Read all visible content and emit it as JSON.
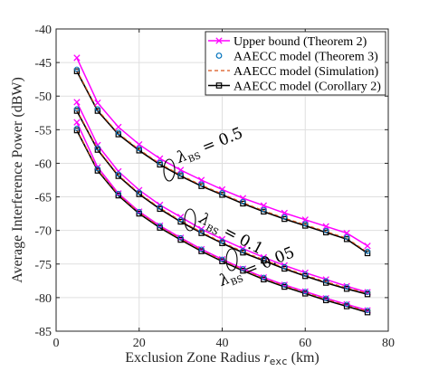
{
  "chart_data": {
    "type": "line",
    "xlabel": "Exclusion Zone Radius r_exc (km)",
    "xlabel_main": "Exclusion Zone Radius ",
    "xlabel_sym": "r",
    "xlabel_sub": "exc",
    "xlabel_unit": " (km)",
    "ylabel": "Average Interference Power (dBW)",
    "xlim": [
      0,
      80
    ],
    "ylim": [
      -85,
      -40
    ],
    "xticks": [
      0,
      20,
      40,
      60,
      80
    ],
    "yticks": [
      -85,
      -80,
      -75,
      -70,
      -65,
      -60,
      -55,
      -50,
      -45,
      -40
    ],
    "x": [
      5,
      10,
      15,
      20,
      25,
      30,
      35,
      40,
      45,
      50,
      55,
      60,
      65,
      70,
      75
    ],
    "legend_position": "top-right",
    "legend": [
      {
        "label": "Upper bound (Theorem 2)",
        "color": "#ff00ff",
        "marker": "x",
        "line": "solid"
      },
      {
        "label": "AAECC model (Theorem 3)",
        "color": "#0072bd",
        "marker": "o",
        "line": "none"
      },
      {
        "label": "AAECC model (Simulation)",
        "color": "#d95319",
        "marker": "none",
        "line": "dashed"
      },
      {
        "label": "AAECC model (Corollary 2)",
        "color": "#000000",
        "marker": "square",
        "line": "solid"
      }
    ],
    "annotations": [
      {
        "text": "λBS = 0.5",
        "sym": "λ",
        "sub": "BS",
        "rest": " = 0.5"
      },
      {
        "text": "λBS = 0.1",
        "sym": "λ",
        "sub": "BS",
        "rest": " = 0.1"
      },
      {
        "text": "λBS = 0.05",
        "sym": "λ",
        "sub": "BS",
        "rest": " = 0.05"
      }
    ],
    "groups": [
      {
        "lambda": 0.5,
        "upper": [
          -44.3,
          -51.0,
          -54.6,
          -57.2,
          -59.3,
          -61.0,
          -62.5,
          -63.9,
          -65.2,
          -66.3,
          -67.4,
          -68.4,
          -69.4,
          -70.4,
          -72.3
        ],
        "model": [
          -46.3,
          -52.2,
          -55.7,
          -58.1,
          -60.2,
          -61.9,
          -63.4,
          -64.7,
          -66.0,
          -67.2,
          -68.3,
          -69.3,
          -70.3,
          -71.3,
          -73.4
        ]
      },
      {
        "lambda": 0.1,
        "upper": [
          -50.9,
          -57.3,
          -61.2,
          -64.0,
          -66.2,
          -68.0,
          -69.8,
          -71.3,
          -72.7,
          -74.0,
          -75.2,
          -76.3,
          -77.3,
          -78.3,
          -79.2
        ],
        "model": [
          -52.2,
          -58.0,
          -61.9,
          -64.6,
          -66.8,
          -68.7,
          -70.4,
          -71.9,
          -73.3,
          -74.5,
          -75.7,
          -76.8,
          -77.8,
          -78.7,
          -79.5
        ]
      },
      {
        "lambda": 0.05,
        "upper": [
          -53.9,
          -60.6,
          -64.5,
          -67.2,
          -69.3,
          -71.1,
          -72.8,
          -74.3,
          -75.7,
          -77.0,
          -78.1,
          -79.1,
          -80.1,
          -81.0,
          -81.9
        ],
        "model": [
          -55.1,
          -61.1,
          -64.8,
          -67.5,
          -69.6,
          -71.4,
          -73.1,
          -74.6,
          -76.0,
          -77.3,
          -78.4,
          -79.4,
          -80.4,
          -81.3,
          -82.2
        ]
      }
    ]
  }
}
